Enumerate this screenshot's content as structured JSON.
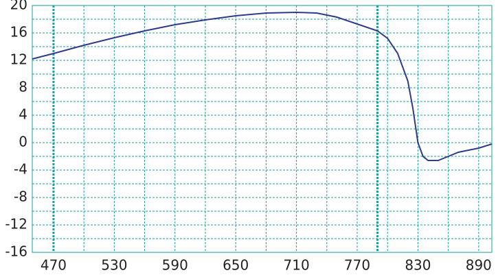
{
  "chart_data": {
    "type": "line",
    "series": [
      {
        "color": "#2e3a8c",
        "x": [
          449,
          470,
          500,
          530,
          560,
          590,
          620,
          650,
          680,
          710,
          730,
          750,
          770,
          790,
          800,
          810,
          820,
          825,
          830,
          835,
          840,
          850,
          860,
          870,
          890,
          903
        ],
        "values": [
          12.2,
          13,
          14.2,
          15.3,
          16.3,
          17.2,
          17.9,
          18.5,
          18.9,
          19.0,
          18.9,
          18.3,
          17.3,
          16.3,
          15.2,
          13,
          9,
          5,
          0,
          -2,
          -2.6,
          -2.6,
          -2,
          -1.4,
          -0.8,
          -0.2
        ]
      }
    ],
    "xlim": [
      449,
      903
    ],
    "ylim": [
      -16,
      20
    ],
    "xticks": [
      470,
      530,
      590,
      650,
      710,
      770,
      830,
      890
    ],
    "yticks": [
      -16,
      -12,
      -8,
      -4,
      0,
      4,
      8,
      12,
      16,
      20
    ],
    "highlight_x": [
      470,
      790
    ],
    "grid": true,
    "grid_color": "#1a9e9e"
  }
}
